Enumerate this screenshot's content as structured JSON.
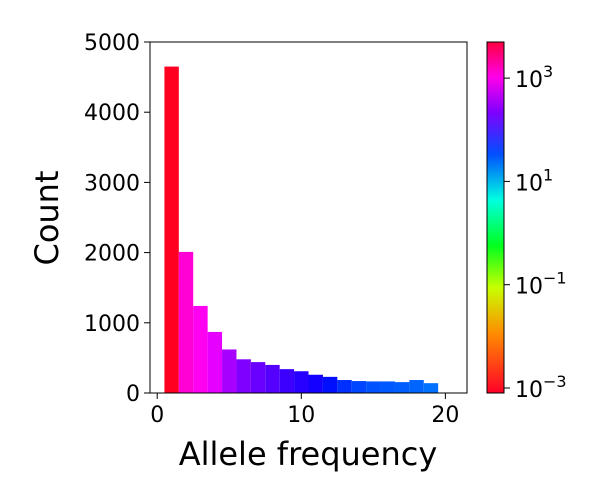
{
  "chart_data": {
    "type": "bar",
    "xlabel": "Allele frequency",
    "ylabel": "Count",
    "xlim": [
      -0.5,
      21.5
    ],
    "ylim": [
      0,
      5000
    ],
    "x_ticks": [
      0,
      10,
      20
    ],
    "y_ticks": [
      0,
      1000,
      2000,
      3000,
      4000,
      5000
    ],
    "bin_width": 1,
    "x": [
      1,
      2,
      3,
      4,
      5,
      6,
      7,
      8,
      9,
      10,
      11,
      12,
      13,
      14,
      15,
      16,
      17,
      18,
      19
    ],
    "values": [
      4650,
      2010,
      1240,
      870,
      620,
      480,
      440,
      400,
      340,
      310,
      260,
      230,
      185,
      170,
      165,
      165,
      155,
      185,
      140
    ],
    "bar_colors": [
      "#ff0020",
      "#ff00d5",
      "#ff00f0",
      "#e600ff",
      "#a800ff",
      "#8000ff",
      "#6a00ff",
      "#5500ff",
      "#3c00ff",
      "#2800ff",
      "#1400ff",
      "#0010ff",
      "#0030ff",
      "#0045ff",
      "#0052ff",
      "#0058ff",
      "#005eff",
      "#0064ff",
      "#0070ff"
    ],
    "grid": false,
    "colorbar": {
      "scale": "log",
      "min": 0.0008,
      "max": 5000,
      "ticks": [
        {
          "value": 0.001,
          "base": "10",
          "exp": "−3"
        },
        {
          "value": 0.1,
          "base": "10",
          "exp": "−1"
        },
        {
          "value": 10,
          "base": "10",
          "exp": "1"
        },
        {
          "value": 1000,
          "base": "10",
          "exp": "3"
        }
      ],
      "colormap": "gist_rainbow"
    }
  }
}
